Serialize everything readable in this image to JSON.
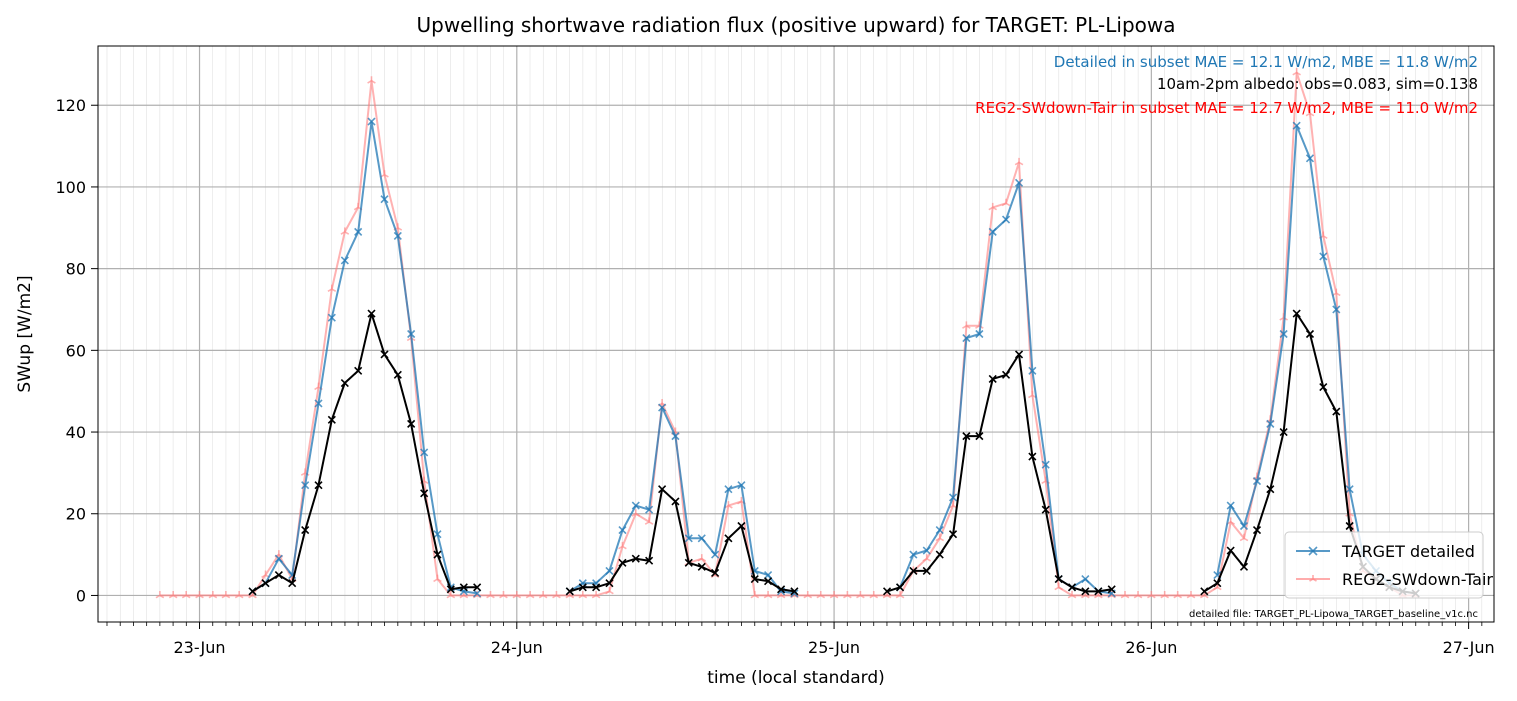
{
  "chart_data": {
    "type": "line",
    "title": "Upwelling shortwave radiation flux (positive upward) for TARGET: PL-Lipowa",
    "xlabel": "time (local standard)",
    "ylabel": "SWup [W/m2]",
    "x_ticks": [
      "23-Jun",
      "24-Jun",
      "25-Jun",
      "26-Jun",
      "27-Jun"
    ],
    "x_tick_days": [
      23,
      24,
      25,
      26,
      27
    ],
    "xlim_days": [
      22.68,
      27.08
    ],
    "y_ticks": [
      "0",
      "20",
      "40",
      "60",
      "80",
      "100",
      "120"
    ],
    "ylim": [
      -6.5,
      134.5
    ],
    "grid": true,
    "x_unit": "day of June (hourly samples)",
    "legend_position": "lower-right",
    "annotations": {
      "detailed_stats": "Detailed in subset MAE = 12.1 W/m2, MBE = 11.8 W/m2",
      "albedo": "10am-2pm albedo: obs=0.083, sim=0.138",
      "reg2_stats": "REG2-SWdown-Tair in subset MAE = 12.7 W/m2, MBE = 11.0 W/m2",
      "file_note": "detailed file: TARGET_PL-Lipowa_TARGET_baseline_v1c.nc"
    },
    "colors": {
      "detailed": "#1f77b4",
      "detailed_stats": "#1f77b4",
      "reg2": "#ff7f7f",
      "reg2_stats": "#ff0000",
      "obs": "#000000",
      "albedo": "#000000"
    },
    "series": [
      {
        "name": "TARGET detailed",
        "key": "detailed",
        "marker": "x",
        "points": [
          [
            23.167,
            1
          ],
          [
            23.208,
            3
          ],
          [
            23.25,
            9
          ],
          [
            23.292,
            5
          ],
          [
            23.333,
            27
          ],
          [
            23.375,
            47
          ],
          [
            23.417,
            68
          ],
          [
            23.458,
            82
          ],
          [
            23.5,
            89
          ],
          [
            23.542,
            116
          ],
          [
            23.583,
            97
          ],
          [
            23.625,
            88
          ],
          [
            23.667,
            64
          ],
          [
            23.708,
            35
          ],
          [
            23.75,
            15
          ],
          [
            23.792,
            2
          ],
          [
            23.833,
            1
          ],
          [
            23.875,
            0.5
          ],
          [
            24.167,
            1
          ],
          [
            24.208,
            3
          ],
          [
            24.25,
            3
          ],
          [
            24.292,
            6
          ],
          [
            24.333,
            16
          ],
          [
            24.375,
            22
          ],
          [
            24.417,
            21
          ],
          [
            24.458,
            46
          ],
          [
            24.5,
            39
          ],
          [
            24.542,
            14
          ],
          [
            24.583,
            14
          ],
          [
            24.625,
            10
          ],
          [
            24.667,
            26
          ],
          [
            24.708,
            27
          ],
          [
            24.75,
            6
          ],
          [
            24.792,
            5
          ],
          [
            24.833,
            1
          ],
          [
            24.875,
            0.5
          ],
          [
            25.208,
            2
          ],
          [
            25.25,
            10
          ],
          [
            25.292,
            11
          ],
          [
            25.333,
            16
          ],
          [
            25.375,
            24
          ],
          [
            25.417,
            63
          ],
          [
            25.458,
            64
          ],
          [
            25.5,
            89
          ],
          [
            25.542,
            92
          ],
          [
            25.583,
            101
          ],
          [
            25.625,
            55
          ],
          [
            25.667,
            32
          ],
          [
            25.708,
            4
          ],
          [
            25.75,
            2
          ],
          [
            25.792,
            4
          ],
          [
            25.833,
            1
          ],
          [
            25.875,
            0.5
          ],
          [
            26.208,
            5
          ],
          [
            26.25,
            22
          ],
          [
            26.292,
            17
          ],
          [
            26.333,
            28
          ],
          [
            26.375,
            42
          ],
          [
            26.417,
            64
          ],
          [
            26.458,
            115
          ],
          [
            26.5,
            107
          ],
          [
            26.542,
            83
          ],
          [
            26.583,
            70
          ],
          [
            26.625,
            26
          ],
          [
            26.667,
            10
          ],
          [
            26.708,
            6
          ],
          [
            26.75,
            3
          ],
          [
            26.792,
            1
          ],
          [
            26.833,
            0.5
          ]
        ]
      },
      {
        "name": "REG2-SWdown-Tair",
        "key": "reg2",
        "marker": "tri",
        "points": [
          [
            22.875,
            0
          ],
          [
            22.917,
            0
          ],
          [
            22.958,
            0
          ],
          [
            23.0,
            0
          ],
          [
            23.042,
            0
          ],
          [
            23.083,
            0
          ],
          [
            23.125,
            0
          ],
          [
            23.167,
            0
          ],
          [
            23.208,
            5
          ],
          [
            23.25,
            10
          ],
          [
            23.292,
            4
          ],
          [
            23.333,
            30
          ],
          [
            23.375,
            51
          ],
          [
            23.417,
            75
          ],
          [
            23.458,
            89
          ],
          [
            23.5,
            95
          ],
          [
            23.542,
            126
          ],
          [
            23.583,
            103
          ],
          [
            23.625,
            90
          ],
          [
            23.667,
            63
          ],
          [
            23.708,
            28
          ],
          [
            23.75,
            4
          ],
          [
            23.792,
            0
          ],
          [
            23.833,
            0
          ],
          [
            23.875,
            0
          ],
          [
            23.917,
            0
          ],
          [
            23.958,
            0
          ],
          [
            24.0,
            0
          ],
          [
            24.042,
            0
          ],
          [
            24.083,
            0
          ],
          [
            24.125,
            0
          ],
          [
            24.167,
            0
          ],
          [
            24.208,
            0
          ],
          [
            24.25,
            0
          ],
          [
            24.292,
            1
          ],
          [
            24.333,
            12
          ],
          [
            24.375,
            20
          ],
          [
            24.417,
            18
          ],
          [
            24.458,
            47
          ],
          [
            24.5,
            40
          ],
          [
            24.542,
            8
          ],
          [
            24.583,
            9
          ],
          [
            24.625,
            5
          ],
          [
            24.667,
            22
          ],
          [
            24.708,
            23
          ],
          [
            24.75,
            0
          ],
          [
            24.792,
            0
          ],
          [
            24.833,
            0
          ],
          [
            24.875,
            0
          ],
          [
            24.917,
            0
          ],
          [
            24.958,
            0
          ],
          [
            25.0,
            0
          ],
          [
            25.042,
            0
          ],
          [
            25.083,
            0
          ],
          [
            25.125,
            0
          ],
          [
            25.167,
            0
          ],
          [
            25.208,
            0
          ],
          [
            25.25,
            6
          ],
          [
            25.292,
            9
          ],
          [
            25.333,
            14
          ],
          [
            25.375,
            22
          ],
          [
            25.417,
            66
          ],
          [
            25.458,
            66
          ],
          [
            25.5,
            95
          ],
          [
            25.542,
            96
          ],
          [
            25.583,
            106
          ],
          [
            25.625,
            49
          ],
          [
            25.667,
            28
          ],
          [
            25.708,
            2
          ],
          [
            25.75,
            0
          ],
          [
            25.792,
            0
          ],
          [
            25.833,
            0
          ],
          [
            25.875,
            0
          ],
          [
            25.917,
            0
          ],
          [
            25.958,
            0
          ],
          [
            26.0,
            0
          ],
          [
            26.042,
            0
          ],
          [
            26.083,
            0
          ],
          [
            26.125,
            0
          ],
          [
            26.167,
            0
          ],
          [
            26.208,
            2
          ],
          [
            26.25,
            18
          ],
          [
            26.292,
            14
          ],
          [
            26.333,
            29
          ],
          [
            26.375,
            43
          ],
          [
            26.417,
            68
          ],
          [
            26.458,
            128
          ],
          [
            26.5,
            118
          ],
          [
            26.542,
            88
          ],
          [
            26.583,
            74
          ],
          [
            26.625,
            20
          ],
          [
            26.667,
            6
          ],
          [
            26.708,
            4
          ],
          [
            26.75,
            2
          ],
          [
            26.792,
            0
          ],
          [
            26.833,
            0
          ]
        ]
      },
      {
        "name": "",
        "key": "obs",
        "marker": "x",
        "points": [
          [
            23.167,
            1
          ],
          [
            23.208,
            3
          ],
          [
            23.25,
            5
          ],
          [
            23.292,
            3
          ],
          [
            23.333,
            16
          ],
          [
            23.375,
            27
          ],
          [
            23.417,
            43
          ],
          [
            23.458,
            52
          ],
          [
            23.5,
            55
          ],
          [
            23.542,
            69
          ],
          [
            23.583,
            59
          ],
          [
            23.625,
            54
          ],
          [
            23.667,
            42
          ],
          [
            23.708,
            25
          ],
          [
            23.75,
            10
          ],
          [
            23.792,
            1.5
          ],
          [
            23.833,
            2
          ],
          [
            23.875,
            2
          ],
          [
            24.167,
            1
          ],
          [
            24.208,
            2
          ],
          [
            24.25,
            2
          ],
          [
            24.292,
            3
          ],
          [
            24.333,
            8
          ],
          [
            24.375,
            9
          ],
          [
            24.417,
            8.5
          ],
          [
            24.458,
            26
          ],
          [
            24.5,
            23
          ],
          [
            24.542,
            8
          ],
          [
            24.583,
            7
          ],
          [
            24.625,
            5.5
          ],
          [
            24.667,
            14
          ],
          [
            24.708,
            17
          ],
          [
            24.75,
            4
          ],
          [
            24.792,
            3.5
          ],
          [
            24.833,
            1.5
          ],
          [
            24.875,
            1
          ],
          [
            25.167,
            1
          ],
          [
            25.208,
            2
          ],
          [
            25.25,
            6
          ],
          [
            25.292,
            6
          ],
          [
            25.333,
            10
          ],
          [
            25.375,
            15
          ],
          [
            25.417,
            39
          ],
          [
            25.458,
            39
          ],
          [
            25.5,
            53
          ],
          [
            25.542,
            54
          ],
          [
            25.583,
            59
          ],
          [
            25.625,
            34
          ],
          [
            25.667,
            21
          ],
          [
            25.708,
            4
          ],
          [
            25.75,
            2
          ],
          [
            25.792,
            1
          ],
          [
            25.833,
            1
          ],
          [
            25.875,
            1.5
          ],
          [
            26.167,
            1
          ],
          [
            26.208,
            3
          ],
          [
            26.25,
            11
          ],
          [
            26.292,
            7
          ],
          [
            26.333,
            16
          ],
          [
            26.375,
            26
          ],
          [
            26.417,
            40
          ],
          [
            26.458,
            69
          ],
          [
            26.5,
            64
          ],
          [
            26.542,
            51
          ],
          [
            26.583,
            45
          ],
          [
            26.625,
            17
          ],
          [
            26.667,
            7
          ],
          [
            26.708,
            4
          ],
          [
            26.75,
            2
          ],
          [
            26.792,
            1
          ],
          [
            26.833,
            0.5
          ]
        ]
      }
    ]
  }
}
